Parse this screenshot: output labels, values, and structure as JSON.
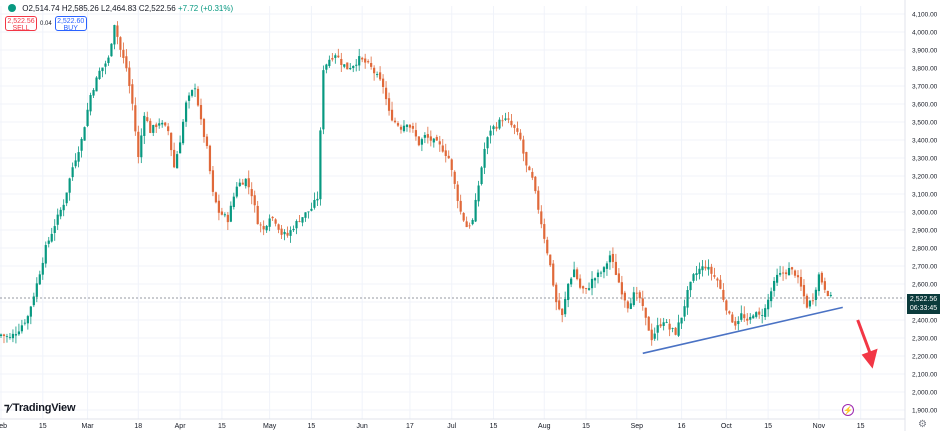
{
  "header": {
    "open": "O2,514.74",
    "high": "H2,585.26",
    "low": "L2,464.83",
    "close": "C2,522.56",
    "change": "+7.72 (+0.31%)"
  },
  "trade": {
    "sell_price": "2,522.56",
    "sell_label": "SELL",
    "spread": "0.04",
    "buy_price": "2,522.60",
    "buy_label": "BUY"
  },
  "brand": {
    "name": "TradingView"
  },
  "price_label": {
    "price": "2,522.56",
    "countdown": "06:33:45"
  },
  "colors": {
    "up": "#089981",
    "down": "#e0693a",
    "trendline": "#4a72c4",
    "arrow": "#f23645"
  },
  "chart_data": {
    "type": "candlestick",
    "y_axis": {
      "min": 1900,
      "max": 4100,
      "ticks": [
        "1,900.00",
        "2,000.00",
        "2,100.00",
        "2,200.00",
        "2,300.00",
        "2,400.00",
        "2,500.00",
        "2,600.00",
        "2,700.00",
        "2,800.00",
        "2,900.00",
        "3,000.00",
        "3,100.00",
        "3,200.00",
        "3,300.00",
        "3,400.00",
        "3,500.00",
        "3,600.00",
        "3,700.00",
        "3,800.00",
        "3,900.00",
        "4,000.00",
        "4,100.00"
      ]
    },
    "x_axis": {
      "ticks": [
        {
          "label": "Feb",
          "day": 0
        },
        {
          "label": "15",
          "day": 14
        },
        {
          "label": "Mar",
          "day": 29
        },
        {
          "label": "18",
          "day": 46
        },
        {
          "label": "Apr",
          "day": 60
        },
        {
          "label": "15",
          "day": 74
        },
        {
          "label": "May",
          "day": 90
        },
        {
          "label": "15",
          "day": 104
        },
        {
          "label": "Jun",
          "day": 121
        },
        {
          "label": "17",
          "day": 137
        },
        {
          "label": "Jul",
          "day": 151
        },
        {
          "label": "15",
          "day": 165
        },
        {
          "label": "Aug",
          "day": 182
        },
        {
          "label": "15",
          "day": 196
        },
        {
          "label": "Sep",
          "day": 213
        },
        {
          "label": "16",
          "day": 228
        },
        {
          "label": "Oct",
          "day": 243
        },
        {
          "label": "15",
          "day": 257
        },
        {
          "label": "Nov",
          "day": 274
        },
        {
          "label": "15",
          "day": 288
        }
      ],
      "max_day": 305
    },
    "close_path": [
      [
        0,
        2320
      ],
      [
        3,
        2300
      ],
      [
        6,
        2350
      ],
      [
        9,
        2420
      ],
      [
        12,
        2600
      ],
      [
        15,
        2800
      ],
      [
        18,
        2930
      ],
      [
        21,
        3050
      ],
      [
        24,
        3250
      ],
      [
        27,
        3400
      ],
      [
        30,
        3650
      ],
      [
        33,
        3780
      ],
      [
        36,
        3850
      ],
      [
        38,
        4050
      ],
      [
        40,
        3900
      ],
      [
        42,
        3800
      ],
      [
        44,
        3600
      ],
      [
        46,
        3300
      ],
      [
        48,
        3550
      ],
      [
        50,
        3450
      ],
      [
        53,
        3500
      ],
      [
        56,
        3450
      ],
      [
        58,
        3250
      ],
      [
        60,
        3400
      ],
      [
        62,
        3600
      ],
      [
        65,
        3700
      ],
      [
        67,
        3500
      ],
      [
        69,
        3350
      ],
      [
        71,
        3100
      ],
      [
        73,
        3000
      ],
      [
        76,
        2960
      ],
      [
        79,
        3150
      ],
      [
        82,
        3180
      ],
      [
        84,
        3100
      ],
      [
        86,
        2950
      ],
      [
        88,
        2900
      ],
      [
        90,
        2980
      ],
      [
        92,
        2950
      ],
      [
        94,
        2880
      ],
      [
        96,
        2870
      ],
      [
        98,
        2920
      ],
      [
        100,
        2960
      ],
      [
        102,
        2990
      ],
      [
        104,
        3020
      ],
      [
        106,
        3080
      ],
      [
        108,
        3800
      ],
      [
        110,
        3850
      ],
      [
        112,
        3880
      ],
      [
        114,
        3830
      ],
      [
        116,
        3800
      ],
      [
        118,
        3820
      ],
      [
        120,
        3850
      ],
      [
        122,
        3830
      ],
      [
        124,
        3800
      ],
      [
        126,
        3750
      ],
      [
        128,
        3700
      ],
      [
        130,
        3550
      ],
      [
        132,
        3500
      ],
      [
        134,
        3470
      ],
      [
        136,
        3500
      ],
      [
        138,
        3450
      ],
      [
        140,
        3380
      ],
      [
        142,
        3420
      ],
      [
        144,
        3400
      ],
      [
        146,
        3380
      ],
      [
        148,
        3350
      ],
      [
        150,
        3300
      ],
      [
        152,
        3150
      ],
      [
        154,
        3000
      ],
      [
        156,
        2920
      ],
      [
        158,
        2950
      ],
      [
        160,
        3150
      ],
      [
        162,
        3350
      ],
      [
        164,
        3460
      ],
      [
        166,
        3480
      ],
      [
        168,
        3520
      ],
      [
        170,
        3500
      ],
      [
        172,
        3460
      ],
      [
        174,
        3400
      ],
      [
        176,
        3250
      ],
      [
        178,
        3180
      ],
      [
        180,
        3020
      ],
      [
        182,
        2860
      ],
      [
        184,
        2700
      ],
      [
        186,
        2500
      ],
      [
        188,
        2420
      ],
      [
        190,
        2600
      ],
      [
        192,
        2680
      ],
      [
        194,
        2580
      ],
      [
        196,
        2560
      ],
      [
        198,
        2620
      ],
      [
        200,
        2650
      ],
      [
        202,
        2680
      ],
      [
        204,
        2760
      ],
      [
        206,
        2660
      ],
      [
        208,
        2560
      ],
      [
        210,
        2480
      ],
      [
        212,
        2540
      ],
      [
        214,
        2520
      ],
      [
        216,
        2400
      ],
      [
        218,
        2300
      ],
      [
        220,
        2360
      ],
      [
        222,
        2400
      ],
      [
        224,
        2350
      ],
      [
        226,
        2330
      ],
      [
        228,
        2420
      ],
      [
        230,
        2550
      ],
      [
        232,
        2640
      ],
      [
        234,
        2680
      ],
      [
        236,
        2700
      ],
      [
        238,
        2660
      ],
      [
        240,
        2620
      ],
      [
        242,
        2520
      ],
      [
        244,
        2420
      ],
      [
        246,
        2380
      ],
      [
        248,
        2430
      ],
      [
        250,
        2380
      ],
      [
        252,
        2440
      ],
      [
        254,
        2420
      ],
      [
        256,
        2460
      ],
      [
        258,
        2560
      ],
      [
        260,
        2640
      ],
      [
        262,
        2660
      ],
      [
        264,
        2680
      ],
      [
        266,
        2660
      ],
      [
        268,
        2580
      ],
      [
        270,
        2480
      ],
      [
        272,
        2520
      ],
      [
        274,
        2650
      ],
      [
        276,
        2580
      ],
      [
        278,
        2522
      ]
    ],
    "trendline": {
      "start": [
        215,
        2215
      ],
      "end": [
        282,
        2470
      ]
    },
    "arrow": {
      "start": [
        287,
        2400
      ],
      "end": [
        292,
        2130
      ]
    }
  }
}
